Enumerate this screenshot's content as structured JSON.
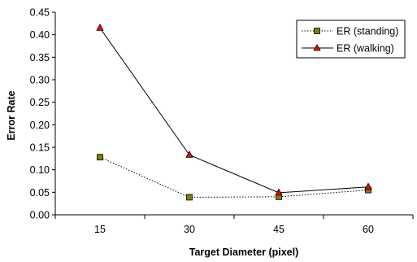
{
  "chart_data": {
    "type": "line",
    "xlabel": "Target Diameter (pixel)",
    "ylabel": "Error Rate",
    "categories": [
      "15",
      "30",
      "45",
      "60"
    ],
    "ylim": [
      0,
      0.45
    ],
    "yticks": [
      "0.00",
      "0.05",
      "0.10",
      "0.15",
      "0.20",
      "0.25",
      "0.30",
      "0.35",
      "0.40",
      "0.45"
    ],
    "grid": false,
    "legend_position": "top-right",
    "series": [
      {
        "name": "ER (standing)",
        "values": [
          0.128,
          0.039,
          0.04,
          0.055
        ],
        "line_style": "dotted",
        "marker": "square",
        "marker_color": "#808000",
        "line_color": "#000000"
      },
      {
        "name": "ER (walking)",
        "values": [
          0.415,
          0.133,
          0.049,
          0.062
        ],
        "line_style": "solid",
        "marker": "triangle",
        "marker_color": "#ff0000",
        "line_color": "#000000"
      }
    ]
  }
}
